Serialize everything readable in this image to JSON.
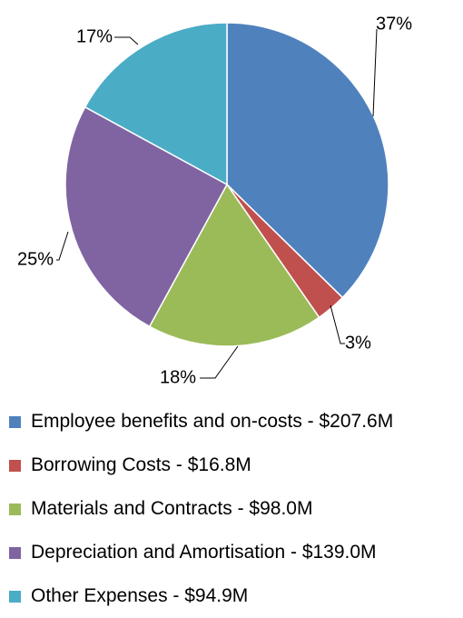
{
  "chart_data": {
    "type": "pie",
    "slices": [
      {
        "label": "Employee benefits and on-costs - $207.6M",
        "value": 207.6,
        "percent_label": "37%",
        "color": "#4F81BD"
      },
      {
        "label": "Borrowing Costs - $16.8M",
        "value": 16.8,
        "percent_label": "3%",
        "color": "#C0504D"
      },
      {
        "label": "Materials and Contracts - $98.0M",
        "value": 98.0,
        "percent_label": "18%",
        "color": "#9BBB59"
      },
      {
        "label": "Depreciation and Amortisation - $139.0M",
        "value": 139.0,
        "percent_label": "25%",
        "color": "#8064A2"
      },
      {
        "label": "Other Expenses - $94.9M",
        "value": 94.9,
        "percent_label": "17%",
        "color": "#4BACC6"
      }
    ],
    "start_angle": "12 o'clock",
    "direction": "clockwise",
    "legend_position": "bottom"
  }
}
